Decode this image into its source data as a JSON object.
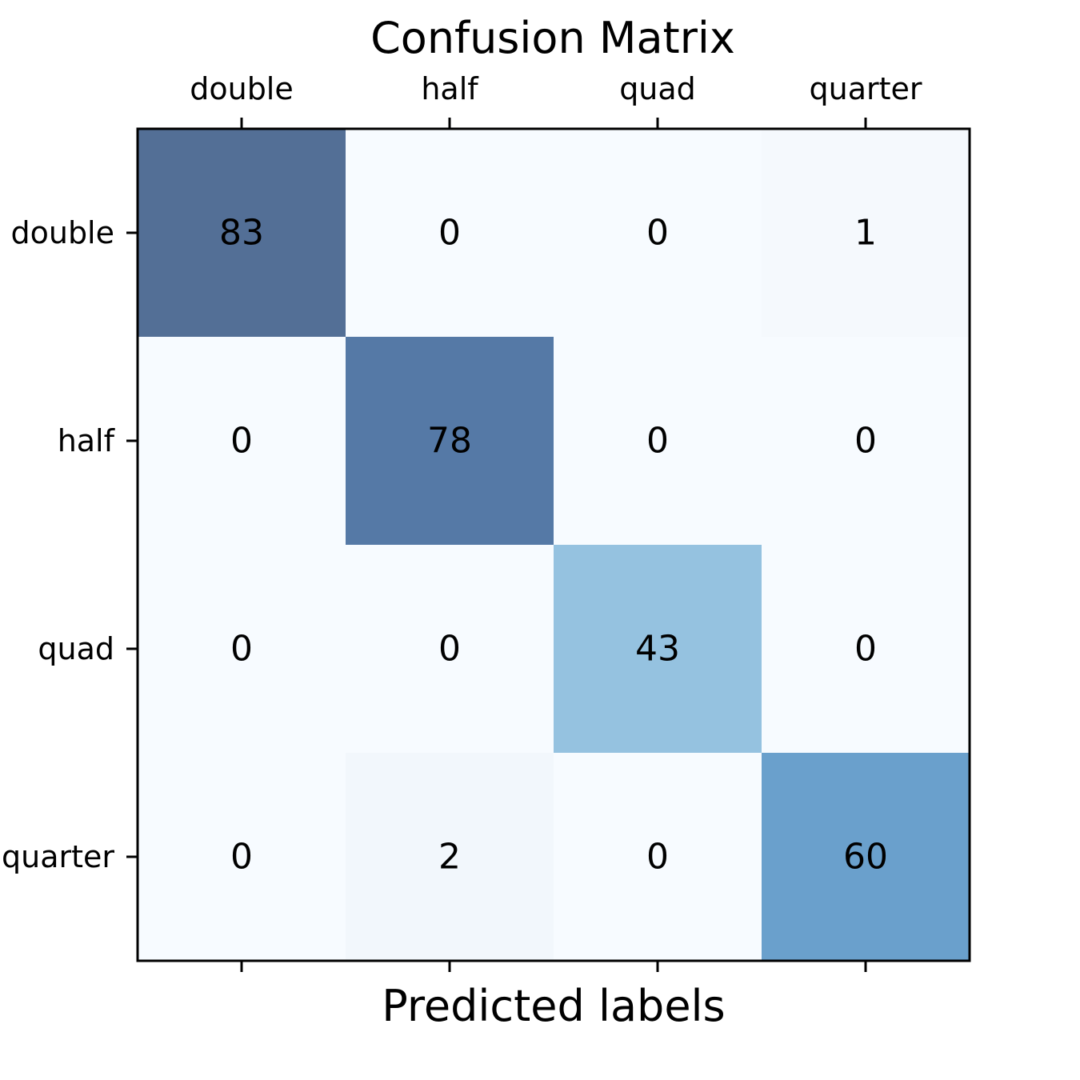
{
  "chart_data": {
    "type": "heatmap",
    "title": "Confusion Matrix",
    "xlabel": "Predicted labels",
    "ylabel": "",
    "x_categories": [
      "double",
      "half",
      "quad",
      "quarter"
    ],
    "y_categories": [
      "double",
      "half",
      "quad",
      "quarter"
    ],
    "values": [
      [
        83,
        0,
        0,
        1
      ],
      [
        0,
        78,
        0,
        0
      ],
      [
        0,
        0,
        43,
        0
      ],
      [
        0,
        2,
        0,
        60
      ]
    ],
    "x_ticks_position": "top",
    "grid": false,
    "colormap": "Blues",
    "color_range": [
      0,
      83
    ],
    "colors": {
      "83": "#536f96",
      "78": "#5579a6",
      "60": "#6aa0cc",
      "43": "#95c2e0",
      "2": "#f2f7fc",
      "1": "#f5f9fd",
      "0": "#f7fbff"
    }
  }
}
